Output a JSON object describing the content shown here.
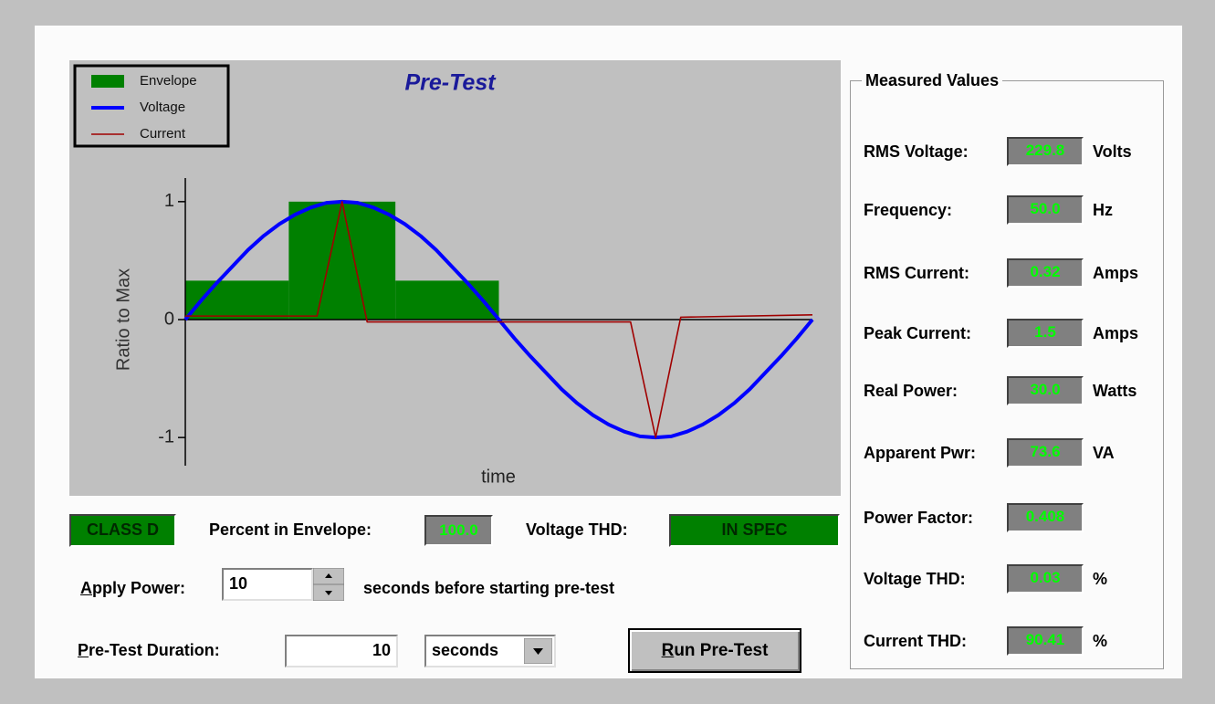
{
  "chart_data": {
    "type": "line",
    "title": "Pre-Test",
    "x_label": "time",
    "y_label": "Ratio to Max",
    "xlim": [
      0,
      1
    ],
    "ylim": [
      -1.2,
      1.2
    ],
    "yticks": [
      -1,
      0,
      1
    ],
    "envelope": {
      "name": "Envelope",
      "color": "#008000",
      "bins": [
        0,
        0.165,
        0.335,
        0.5
      ],
      "values": [
        0.33,
        1,
        0.33
      ]
    },
    "series": [
      {
        "name": "Voltage",
        "color": "#0000ff",
        "x": [
          0,
          0.025,
          0.05,
          0.075,
          0.1,
          0.125,
          0.15,
          0.175,
          0.2,
          0.225,
          0.25,
          0.275,
          0.3,
          0.325,
          0.35,
          0.375,
          0.4,
          0.425,
          0.45,
          0.475,
          0.5,
          0.525,
          0.55,
          0.575,
          0.6,
          0.625,
          0.65,
          0.675,
          0.7,
          0.725,
          0.75,
          0.775,
          0.8,
          0.825,
          0.85,
          0.875,
          0.9,
          0.925,
          0.95,
          0.975,
          1
        ],
        "values": [
          0,
          0.16,
          0.31,
          0.45,
          0.59,
          0.71,
          0.81,
          0.89,
          0.95,
          0.99,
          1,
          0.99,
          0.95,
          0.89,
          0.81,
          0.71,
          0.59,
          0.45,
          0.31,
          0.16,
          0,
          -0.16,
          -0.31,
          -0.45,
          -0.59,
          -0.71,
          -0.81,
          -0.89,
          -0.95,
          -0.99,
          -1,
          -0.99,
          -0.95,
          -0.89,
          -0.81,
          -0.71,
          -0.59,
          -0.45,
          -0.31,
          -0.16,
          0
        ]
      },
      {
        "name": "Current",
        "color": "#a00000",
        "x": [
          0,
          0.21,
          0.25,
          0.29,
          0.5,
          0.71,
          0.75,
          0.79,
          1
        ],
        "values": [
          0.03,
          0.03,
          1,
          -0.02,
          -0.02,
          -0.02,
          -1,
          0.02,
          0.04
        ]
      }
    ]
  },
  "measured": {
    "title": "Measured Values",
    "rows": [
      {
        "label": "RMS Voltage:",
        "value": "229.8",
        "unit": "Volts"
      },
      {
        "label": "Frequency:",
        "value": "50.0",
        "unit": "Hz"
      },
      {
        "label": "RMS Current:",
        "value": "0.32",
        "unit": "Amps"
      },
      {
        "label": "Peak Current:",
        "value": "1.5",
        "unit": "Amps"
      },
      {
        "label": "Real Power:",
        "value": "30.0",
        "unit": "Watts"
      },
      {
        "label": "Apparent Pwr:",
        "value": "73.6",
        "unit": "VA"
      },
      {
        "label": "Power Factor:",
        "value": "0.408"
      },
      {
        "label": "Voltage THD:",
        "value": "0.03",
        "unit": "%"
      },
      {
        "label": "Current THD:",
        "value": "90.41",
        "unit": "%"
      }
    ]
  },
  "status": {
    "class": "CLASS D",
    "percent_label": "Percent in Envelope:",
    "percent_value": "100.0",
    "thd_label": "Voltage THD:",
    "thd_value": "IN SPEC"
  },
  "controls": {
    "apply_label": "Apply Power:",
    "apply_value": "10",
    "apply_suffix": "seconds before starting pre-test",
    "duration_label": "Pre-Test Duration:",
    "duration_value": "10",
    "duration_unit": "seconds",
    "run_button": "Run Pre-Test"
  }
}
